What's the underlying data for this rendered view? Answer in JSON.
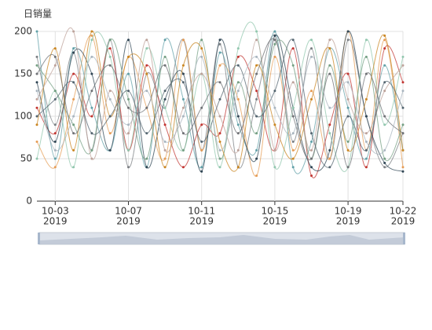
{
  "chart_data": {
    "type": "line",
    "y_axis_label": "日销量",
    "smooth": true,
    "x": [
      "2019-10-02",
      "2019-10-03",
      "2019-10-04",
      "2019-10-05",
      "2019-10-06",
      "2019-10-07",
      "2019-10-08",
      "2019-10-09",
      "2019-10-10",
      "2019-10-11",
      "2019-10-12",
      "2019-10-13",
      "2019-10-14",
      "2019-10-15",
      "2019-10-16",
      "2019-10-17",
      "2019-10-18",
      "2019-10-19",
      "2019-10-20",
      "2019-10-21",
      "2019-10-22"
    ],
    "xlim": [
      "2019-10-02",
      "2019-10-22"
    ],
    "xticks": [
      {
        "value": "2019-10-03",
        "label": [
          "10-03",
          "2019"
        ]
      },
      {
        "value": "2019-10-07",
        "label": [
          "10-07",
          "2019"
        ]
      },
      {
        "value": "2019-10-11",
        "label": [
          "10-11",
          "2019"
        ]
      },
      {
        "value": "2019-10-15",
        "label": [
          "10-15",
          "2019"
        ]
      },
      {
        "value": "2019-10-19",
        "label": [
          "10-19",
          "2019"
        ]
      },
      {
        "value": "2019-10-22",
        "label": [
          "10-22",
          "2019"
        ]
      }
    ],
    "ylim": [
      0,
      200
    ],
    "yticks": [
      0,
      50,
      100,
      150,
      200
    ],
    "grid": true,
    "series": [
      {
        "color": "#7b7f83",
        "values": [
          170,
          90,
          175,
          60,
          190,
          40,
          150,
          110,
          190,
          60,
          185,
          40,
          120,
          195,
          70,
          180,
          50,
          190,
          100,
          40,
          80
        ]
      },
      {
        "color": "#e69d56",
        "values": [
          70,
          40,
          120,
          195,
          80,
          170,
          110,
          50,
          190,
          60,
          160,
          120,
          30,
          170,
          60,
          130,
          50,
          200,
          60,
          190,
          40
        ]
      },
      {
        "color": "#c23531",
        "values": [
          110,
          80,
          150,
          100,
          180,
          60,
          160,
          90,
          40,
          90,
          80,
          170,
          130,
          60,
          180,
          30,
          90,
          150,
          40,
          180,
          140
        ]
      },
      {
        "color": "#61a0a8",
        "values": [
          200,
          50,
          180,
          110,
          60,
          150,
          40,
          190,
          120,
          40,
          175,
          90,
          60,
          200,
          40,
          70,
          180,
          110,
          50,
          160,
          60
        ]
      },
      {
        "color": "#2f4554",
        "values": [
          140,
          70,
          175,
          150,
          60,
          190,
          40,
          120,
          150,
          35,
          190,
          100,
          50,
          195,
          110,
          40,
          60,
          200,
          100,
          45,
          35
        ]
      },
      {
        "color": "#91c7ae",
        "values": [
          50,
          130,
          40,
          190,
          170,
          60,
          180,
          110,
          60,
          150,
          40,
          180,
          200,
          40,
          110,
          190,
          80,
          40,
          190,
          90,
          170
        ]
      },
      {
        "color": "#749f83",
        "values": [
          160,
          130,
          90,
          60,
          190,
          120,
          50,
          170,
          60,
          190,
          50,
          140,
          80,
          185,
          160,
          50,
          160,
          70,
          170,
          50,
          90
        ]
      },
      {
        "color": "#ca8622",
        "values": [
          90,
          180,
          60,
          200,
          100,
          170,
          150,
          40,
          160,
          180,
          70,
          40,
          160,
          90,
          50,
          120,
          180,
          60,
          120,
          195,
          60
        ]
      },
      {
        "color": "#bda29a",
        "values": [
          120,
          160,
          200,
          50,
          130,
          80,
          190,
          60,
          110,
          150,
          100,
          60,
          190,
          60,
          140,
          60,
          190,
          120,
          80,
          130,
          160
        ]
      },
      {
        "color": "#6e7074",
        "values": [
          150,
          170,
          80,
          130,
          160,
          110,
          110,
          160,
          80,
          110,
          140,
          80,
          150,
          190,
          100,
          50,
          150,
          40,
          150,
          100,
          80
        ]
      },
      {
        "color": "#546570",
        "values": [
          100,
          120,
          140,
          80,
          100,
          130,
          80,
          130,
          140,
          70,
          120,
          160,
          100,
          130,
          190,
          80,
          40,
          100,
          60,
          140,
          110
        ]
      },
      {
        "color": "#a9b5bf",
        "values": [
          130,
          60,
          100,
          170,
          120,
          90,
          130,
          70,
          100,
          170,
          60,
          130,
          170,
          110,
          80,
          170,
          110,
          140,
          70,
          60,
          130
        ]
      }
    ]
  }
}
